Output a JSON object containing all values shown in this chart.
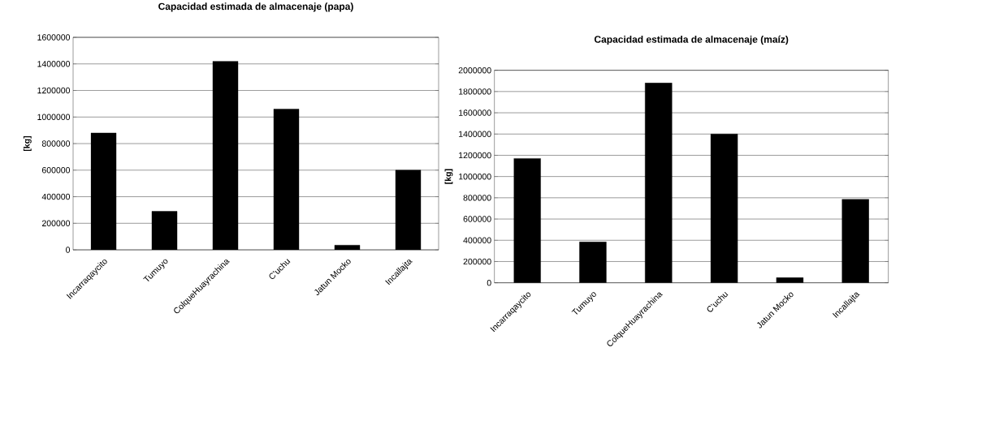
{
  "chart_data": [
    {
      "type": "bar",
      "title": "Capacidad estimada de almacenaje (papa)",
      "ylabel": "[kg]",
      "categories": [
        "Incarraqaycito",
        "Tumuyo",
        "ColqueHuayrachina",
        "C'uchu",
        "Jatun Mocko",
        "Incallajta"
      ],
      "values": [
        880000,
        290000,
        1420000,
        1060000,
        35000,
        600000
      ],
      "color": "#000000",
      "ylim": [
        0,
        1600000
      ],
      "yticks": [
        0,
        200000,
        400000,
        600000,
        800000,
        1000000,
        1200000,
        1400000,
        1600000
      ],
      "grid": "y"
    },
    {
      "type": "bar",
      "title": "Capacidad estimada de almacenaje (maíz)",
      "ylabel": "[kg]",
      "categories": [
        "Incarraqaycito",
        "Tumuyo",
        "ColqueHuayrachina",
        "C'uchu",
        "Jatun Mocko",
        "Incallajta"
      ],
      "values": [
        1170000,
        384000,
        1880000,
        1400000,
        48000,
        785000
      ],
      "color": "#000000",
      "ylim": [
        0,
        2000000
      ],
      "yticks": [
        0,
        200000,
        400000,
        600000,
        800000,
        1000000,
        1200000,
        1400000,
        1600000,
        1800000,
        2000000
      ],
      "grid": "y"
    }
  ]
}
